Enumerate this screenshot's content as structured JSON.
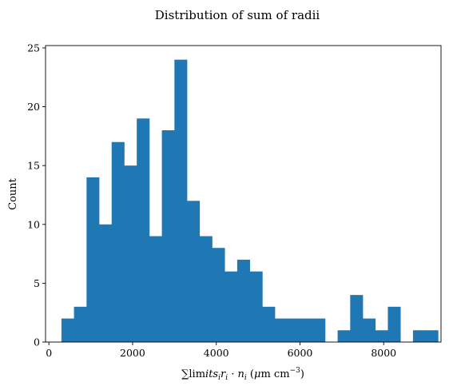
{
  "chart_data": {
    "type": "bar",
    "title": "Distribution of sum of radii",
    "xlabel": "∑limits_i r_i · n_i (μm cm⁻³)",
    "xlabel_parts": {
      "sum": "∑",
      "limits": "lim",
      "italic": "its",
      "sub_i": "i",
      "r": "r",
      "dot": " · ",
      "n": "n",
      "units_open": " (",
      "mu": "μ",
      "units_m_cm": "m cm",
      "units_exp": "−3",
      "units_close": ")"
    },
    "ylabel": "Count",
    "xlim": [
      -80,
      9370
    ],
    "ylim": [
      0,
      25.2
    ],
    "xticks": [
      0,
      2000,
      4000,
      6000,
      8000
    ],
    "yticks": [
      0,
      5,
      10,
      15,
      20,
      25
    ],
    "bar_color": "#1f77b4",
    "bin_edges": [
      300,
      600,
      900,
      1200,
      1500,
      1800,
      2100,
      2400,
      2700,
      3000,
      3300,
      3600,
      3900,
      4200,
      4500,
      4800,
      5100,
      5400,
      5700,
      6000,
      6300,
      6600,
      6900,
      7200,
      7500,
      7800,
      8100,
      8400,
      8700,
      9000
    ],
    "counts": [
      2,
      3,
      14,
      10,
      17,
      15,
      19,
      9,
      18,
      24,
      12,
      9,
      8,
      6,
      7,
      6,
      3,
      2,
      2,
      2,
      2,
      0,
      1,
      4,
      2,
      1,
      3,
      0,
      1,
      1
    ],
    "grid": false
  }
}
